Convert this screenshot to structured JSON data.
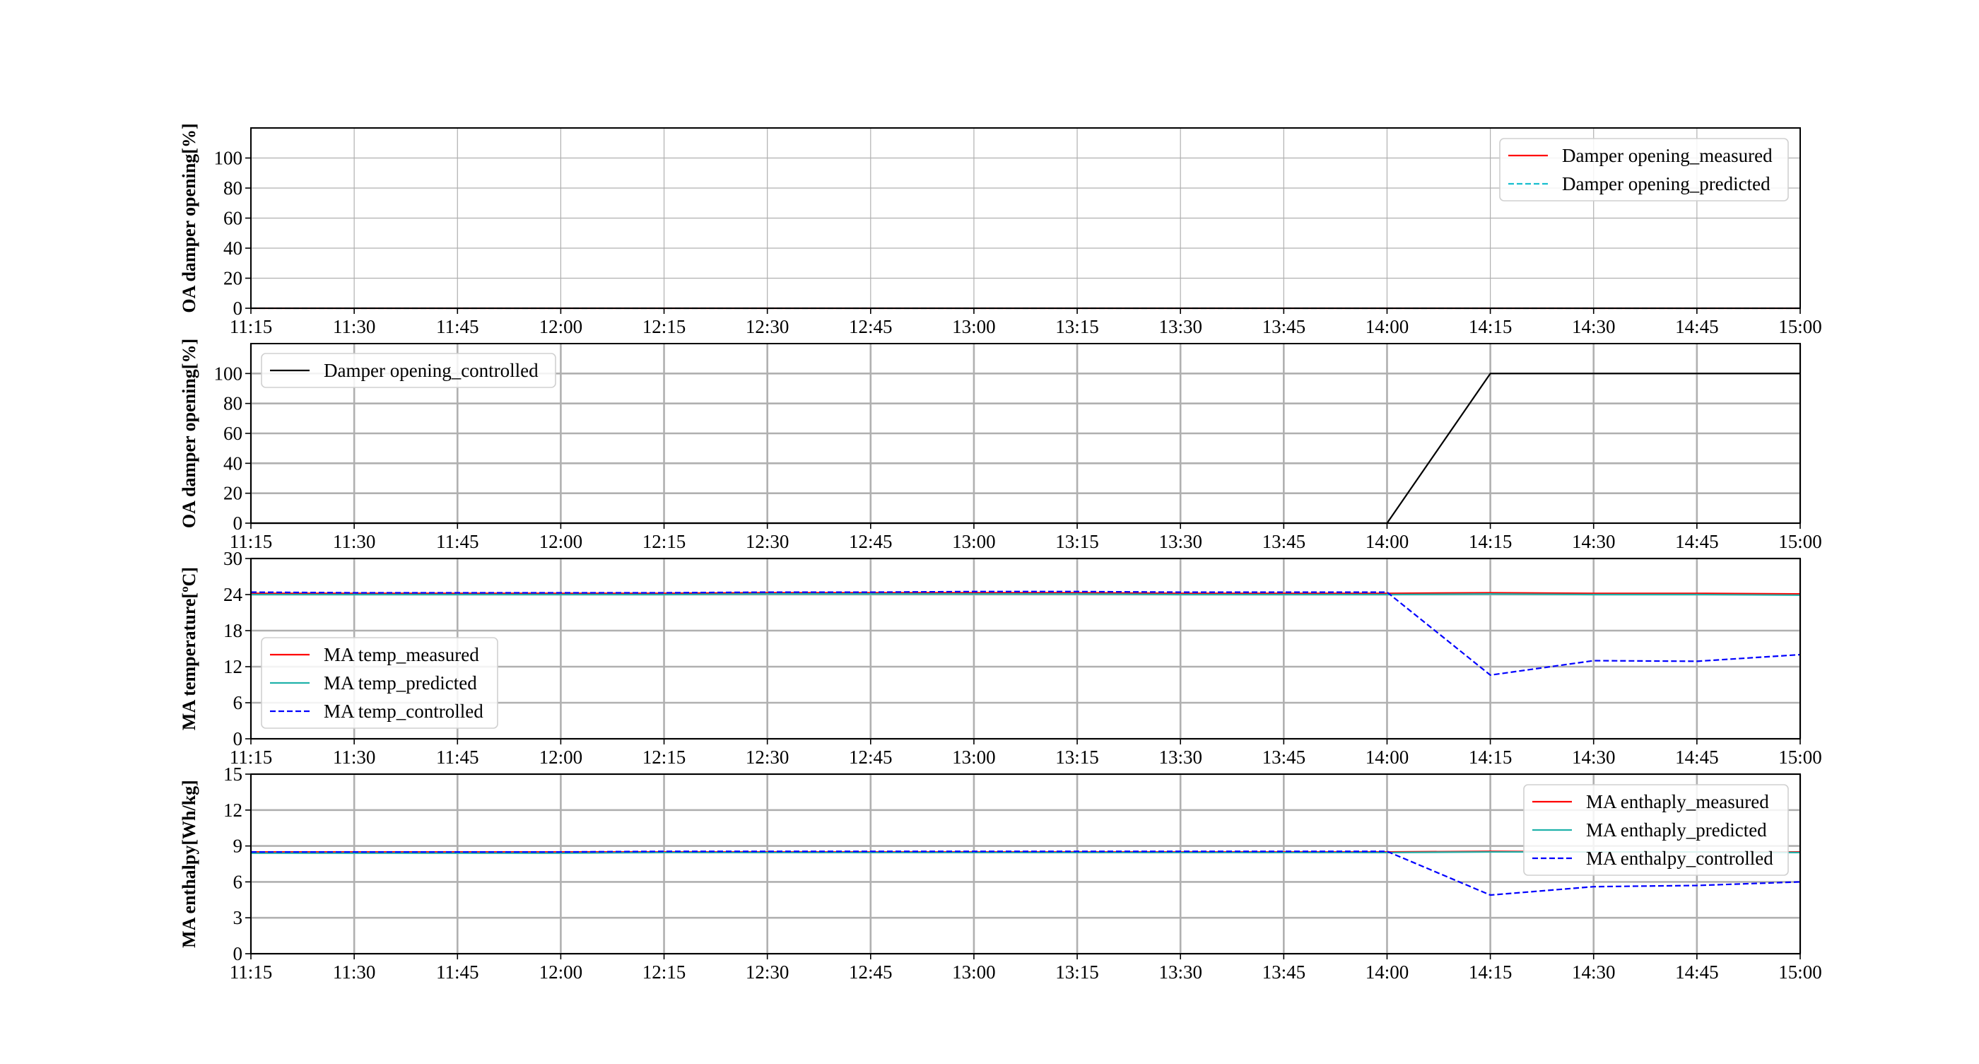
{
  "x_ticks": [
    "11:15",
    "11:30",
    "11:45",
    "12:00",
    "12:15",
    "12:30",
    "12:45",
    "13:00",
    "13:15",
    "13:30",
    "13:45",
    "14:00",
    "14:15",
    "14:30",
    "14:45",
    "15:00"
  ],
  "chart_data": [
    {
      "type": "line",
      "ylabel": "OA damper opening[%]",
      "ylim": [
        0,
        120
      ],
      "yticks": [
        0,
        20,
        40,
        60,
        80,
        100
      ],
      "grid": true,
      "legend": "upper-right",
      "x": [
        "11:15",
        "11:30",
        "11:45",
        "12:00",
        "12:15",
        "12:30",
        "12:45",
        "13:00",
        "13:15",
        "13:30",
        "13:45",
        "14:00",
        "14:15",
        "14:30",
        "14:45",
        "15:00"
      ],
      "series": [
        {
          "name": "Damper opening_measured",
          "color": "#ff0000",
          "dash": "solid",
          "values": [
            0,
            0,
            0,
            0,
            0,
            0,
            0,
            0,
            0,
            0,
            0,
            0,
            0,
            0,
            0,
            0
          ]
        },
        {
          "name": "Damper opening_predicted",
          "color": "#17becf",
          "dash": "dashed",
          "values": [
            0,
            0,
            0,
            0,
            0,
            0,
            0,
            0,
            0,
            0,
            0,
            0,
            0,
            0,
            0,
            0
          ]
        }
      ]
    },
    {
      "type": "line",
      "ylabel": "OA damper opening[%]",
      "ylim": [
        0,
        120
      ],
      "yticks": [
        0,
        20,
        40,
        60,
        80,
        100
      ],
      "grid": true,
      "legend": "upper-left",
      "x": [
        "11:15",
        "11:30",
        "11:45",
        "12:00",
        "12:15",
        "12:30",
        "12:45",
        "13:00",
        "13:15",
        "13:30",
        "13:45",
        "14:00",
        "14:15",
        "14:30",
        "14:45",
        "15:00"
      ],
      "series": [
        {
          "name": "Damper opening_controlled",
          "color": "#000000",
          "dash": "solid",
          "values": [
            0,
            0,
            0,
            0,
            0,
            0,
            0,
            0,
            0,
            0,
            0,
            0,
            100,
            100,
            100,
            100
          ]
        }
      ]
    },
    {
      "type": "line",
      "ylabel": "MA temperature[ºC]",
      "ylim": [
        0,
        30
      ],
      "yticks": [
        0,
        6,
        12,
        18,
        24,
        30
      ],
      "grid": true,
      "legend": "lower-left",
      "x": [
        "11:15",
        "11:30",
        "11:45",
        "12:00",
        "12:15",
        "12:30",
        "12:45",
        "13:00",
        "13:15",
        "13:30",
        "13:45",
        "14:00",
        "14:15",
        "14:30",
        "14:45",
        "15:00"
      ],
      "series": [
        {
          "name": "MA temp_measured",
          "color": "#ff0000",
          "dash": "solid",
          "values": [
            24.2,
            24.2,
            24.2,
            24.2,
            24.2,
            24.3,
            24.3,
            24.3,
            24.3,
            24.2,
            24.2,
            24.2,
            24.3,
            24.2,
            24.2,
            24.1
          ]
        },
        {
          "name": "MA temp_predicted",
          "color": "#20b2aa",
          "dash": "solid",
          "values": [
            24.0,
            24.0,
            24.0,
            24.0,
            24.0,
            24.1,
            24.1,
            24.1,
            24.1,
            24.0,
            24.0,
            24.0,
            24.1,
            24.0,
            24.0,
            23.9
          ]
        },
        {
          "name": "MA temp_controlled",
          "color": "#0000ff",
          "dash": "dashed",
          "values": [
            24.4,
            24.3,
            24.3,
            24.3,
            24.3,
            24.4,
            24.4,
            24.5,
            24.5,
            24.4,
            24.4,
            24.4,
            10.6,
            13.0,
            12.9,
            14.0
          ]
        }
      ]
    },
    {
      "type": "line",
      "ylabel": "MA enthalpy[Wh/kg]",
      "ylim": [
        0,
        15
      ],
      "yticks": [
        0,
        3,
        6,
        9,
        12,
        15
      ],
      "grid": true,
      "legend": "upper-right",
      "x": [
        "11:15",
        "11:30",
        "11:45",
        "12:00",
        "12:15",
        "12:30",
        "12:45",
        "13:00",
        "13:15",
        "13:30",
        "13:45",
        "14:00",
        "14:15",
        "14:30",
        "14:45",
        "15:00"
      ],
      "series": [
        {
          "name": "MA enthaply_measured",
          "color": "#ff0000",
          "dash": "solid",
          "values": [
            8.5,
            8.5,
            8.5,
            8.5,
            8.5,
            8.5,
            8.5,
            8.5,
            8.5,
            8.5,
            8.5,
            8.5,
            8.55,
            8.5,
            8.5,
            8.5
          ]
        },
        {
          "name": "MA enthaply_predicted",
          "color": "#20b2aa",
          "dash": "solid",
          "values": [
            8.4,
            8.4,
            8.4,
            8.4,
            8.45,
            8.45,
            8.45,
            8.45,
            8.45,
            8.45,
            8.45,
            8.45,
            8.5,
            8.5,
            8.5,
            8.45
          ]
        },
        {
          "name": "MA enthalpy_controlled",
          "color": "#0000ff",
          "dash": "dashed",
          "values": [
            8.5,
            8.5,
            8.5,
            8.5,
            8.55,
            8.55,
            8.55,
            8.55,
            8.55,
            8.55,
            8.55,
            8.55,
            4.9,
            5.6,
            5.7,
            6.0
          ]
        }
      ]
    }
  ]
}
